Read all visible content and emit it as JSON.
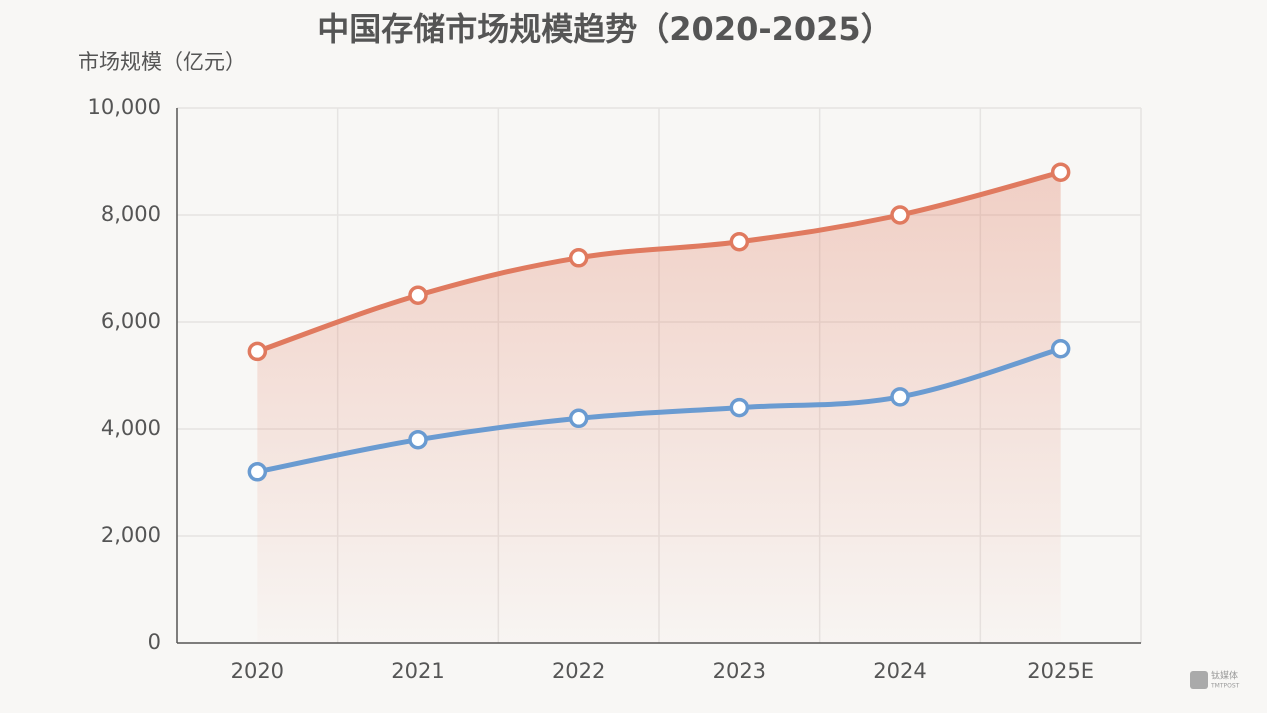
{
  "chart_data": {
    "type": "line",
    "title": "中国存储市场规模趋势（2020-2025）",
    "y_label": "市场规模（亿元）",
    "categories": [
      "2020",
      "2021",
      "2022",
      "2023",
      "2024",
      "2025E"
    ],
    "series": [
      {
        "color": "#e07a5f",
        "values": [
          5450,
          6500,
          7200,
          7500,
          8000,
          8800
        ]
      },
      {
        "color": "#6a9bd1",
        "values": [
          3200,
          3800,
          4200,
          4400,
          4600,
          5500
        ]
      }
    ],
    "ylim": [
      0,
      10000
    ],
    "yticks": [
      0,
      {
        "value": 2000,
        "label": "2,000"
      },
      {
        "value": 4000,
        "label": "4,000"
      },
      {
        "value": 6000,
        "label": "6,000"
      },
      {
        "value": 8000,
        "label": "8,000"
      },
      {
        "value": 10000,
        "label": "10,000"
      }
    ],
    "grid": true,
    "watermark": [
      "钛媒体",
      "TMTPOST"
    ]
  }
}
